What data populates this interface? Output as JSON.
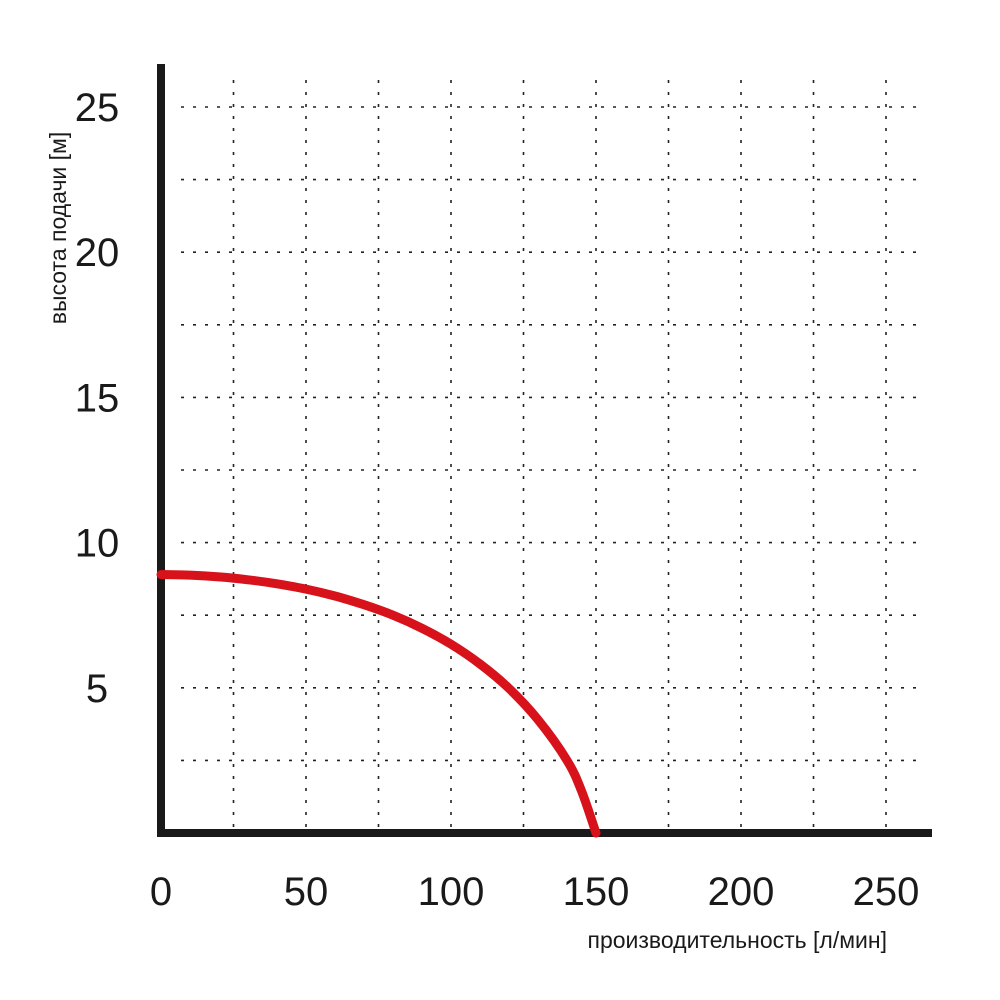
{
  "chart_data": {
    "type": "line",
    "title": "",
    "xlabel": "производительность [л/мин]",
    "ylabel": "высота подачи [м]",
    "xlim": [
      0,
      265
    ],
    "ylim": [
      0,
      26.5
    ],
    "x_ticks": [
      0,
      50,
      100,
      150,
      200,
      250
    ],
    "y_ticks": [
      5,
      10,
      15,
      20,
      25
    ],
    "x_tick_labels": [
      "0",
      "50",
      "100",
      "150",
      "200",
      "250"
    ],
    "y_tick_labels": [
      "5",
      "10",
      "15",
      "20",
      "25"
    ],
    "grid": true,
    "grid_x": [
      25,
      50,
      75,
      100,
      125,
      150,
      175,
      200,
      225,
      250
    ],
    "grid_y": [
      2.5,
      5,
      7.5,
      10,
      12.5,
      15,
      17.5,
      20,
      22.5,
      25
    ],
    "legend": "none",
    "series": [
      {
        "color": "#d7121b",
        "x": [
          0,
          10,
          20,
          30,
          40,
          50,
          60,
          70,
          80,
          90,
          100,
          110,
          120,
          130,
          140,
          145,
          150
        ],
        "y": [
          8.9,
          8.88,
          8.82,
          8.72,
          8.58,
          8.4,
          8.16,
          7.86,
          7.5,
          7.05,
          6.5,
          5.82,
          4.98,
          3.9,
          2.5,
          1.45,
          0
        ]
      }
    ]
  },
  "colors": {
    "axis": "#1a1a1a",
    "grid": "#222222",
    "curve": "#d7121b"
  }
}
